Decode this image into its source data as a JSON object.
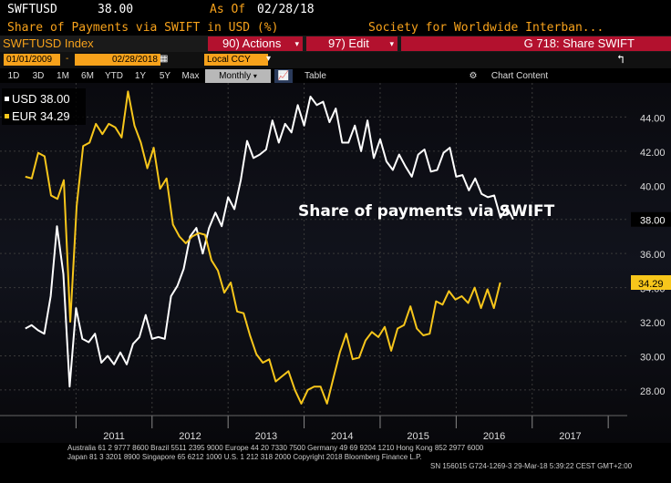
{
  "header": {
    "ticker": "SWFTUSD",
    "last_value": "38.00",
    "as_of_label": "As Of",
    "as_of_date": "02/28/18",
    "title": "Share of Payments via SWIFT in USD (%)",
    "source_desc": "Society for Worldwide Interban...",
    "security": "SWFTUSD Index",
    "actions_label": "90) Actions",
    "edit_label": "97) Edit",
    "function_label": "G 718: Share SWIFT"
  },
  "toolbar": {
    "start_date": "01/01/2009",
    "end_date": "02/28/2018",
    "currency": "Local CCY",
    "periods": [
      "1D",
      "3D",
      "1M",
      "6M",
      "YTD",
      "1Y",
      "5Y",
      "Max"
    ],
    "frequency": "Monthly",
    "table_label": "Table",
    "chart_content_label": "Chart Content"
  },
  "colors": {
    "usd_line": "#ffffff",
    "eur_line": "#f7c61b",
    "accent_orange": "#f7a21b",
    "accent_red": "#b3112e",
    "background": "#000000"
  },
  "chart_data": {
    "type": "line",
    "annotation": "Share of payments via SWIFT",
    "x_labels": [
      "2011",
      "2012",
      "2013",
      "2014",
      "2015",
      "2016",
      "2017"
    ],
    "ylim": [
      26.5,
      46
    ],
    "y_ticks": [
      "28.00",
      "30.00",
      "32.00",
      "34.00",
      "36.00",
      "38.00",
      "40.00",
      "42.00",
      "44.00"
    ],
    "x_start": 2010.0,
    "x_step_months": 1,
    "series": [
      {
        "name": "USD",
        "legend": "USD 38.00",
        "last_label": "38.00",
        "values": [
          31.6,
          31.8,
          31.5,
          31.3,
          33.5,
          37.6,
          34.8,
          28.2,
          32.8,
          31.0,
          30.8,
          31.3,
          29.6,
          30.0,
          29.5,
          30.2,
          29.5,
          30.7,
          31.1,
          32.4,
          31.0,
          31.1,
          31.0,
          33.5,
          34.1,
          35.1,
          37.0,
          37.5,
          36.0,
          37.5,
          38.4,
          37.6,
          39.3,
          38.6,
          40.3,
          42.6,
          41.6,
          41.8,
          42.1,
          43.8,
          42.5,
          43.6,
          43.1,
          44.7,
          43.5,
          45.2,
          44.7,
          44.9,
          43.7,
          44.5,
          42.5,
          42.5,
          43.5,
          42.0,
          43.8,
          41.6,
          42.7,
          41.4,
          40.9,
          41.8,
          41.1,
          40.5,
          41.8,
          42.1,
          40.8,
          40.9,
          41.9,
          42.2,
          40.5,
          40.6,
          39.7,
          40.4,
          39.5,
          39.3,
          39.4,
          38.1,
          38.7,
          38.0
        ]
      },
      {
        "name": "EUR",
        "legend": "EUR 34.29",
        "last_label": "34.29",
        "values": [
          40.5,
          40.4,
          41.9,
          41.7,
          39.4,
          39.2,
          40.3,
          32.0,
          38.8,
          42.3,
          42.5,
          43.6,
          43.0,
          43.6,
          43.4,
          42.8,
          45.5,
          43.5,
          42.5,
          41.0,
          42.2,
          39.8,
          40.4,
          37.7,
          37.0,
          36.6,
          37.0,
          37.2,
          37.1,
          35.6,
          35.0,
          33.7,
          34.3,
          32.6,
          32.5,
          31.2,
          30.1,
          29.6,
          29.8,
          28.5,
          28.8,
          29.1,
          28.0,
          27.2,
          28.0,
          28.2,
          28.2,
          27.2,
          28.7,
          30.2,
          31.3,
          29.8,
          29.9,
          30.9,
          31.4,
          31.1,
          31.7,
          30.3,
          31.6,
          31.8,
          32.9,
          31.6,
          31.2,
          31.3,
          33.2,
          33.0,
          33.8,
          33.3,
          33.5,
          33.1,
          34.0,
          32.8,
          33.9,
          32.8,
          34.3
        ]
      }
    ]
  },
  "footer": {
    "line1": "Australia 61 2 9777 8600 Brazil 5511 2395 9000 Europe 44 20 7330 7500 Germany 49 69 9204 1210 Hong Kong 852 2977 6000",
    "line2": "Japan 81 3 3201 8900        Singapore 65 6212 1000        U.S. 1 212 318 2000        Copyright 2018 Bloomberg Finance L.P.",
    "line3": "SN 156015 G724-1269-3 29-Mar-18  5:39:22 CEST GMT+2:00"
  }
}
